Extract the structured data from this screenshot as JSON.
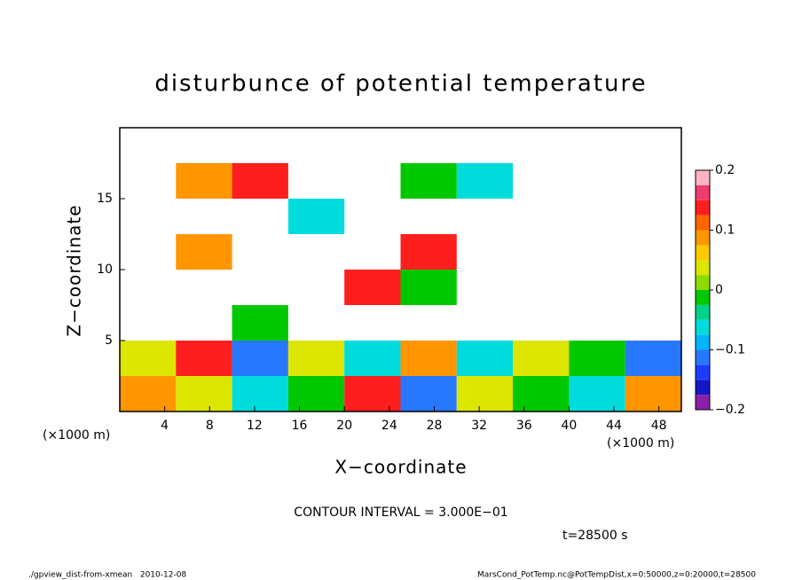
{
  "chart_data": {
    "type": "heatmap",
    "title": "disturbunce of potential temperature",
    "x_label": "X−coordinate",
    "y_label": "Z−coordinate",
    "x_unit_labels": [
      "(×1000 m)",
      "(×1000 m)"
    ],
    "contour_note": "CONTOUR INTERVAL = 3.000E−01",
    "time_label": "t=28500 s",
    "footer_left": "./gpview_dist-from-xmean   2010-12-08",
    "footer_right": "MarsCond_PotTemp.nc@PotTempDist,x=0:50000,z=0:20000,t=28500",
    "xlim": [
      0,
      50
    ],
    "ylim": [
      0,
      20
    ],
    "xticks": [
      4,
      8,
      12,
      16,
      20,
      24,
      28,
      32,
      36,
      40,
      44,
      48
    ],
    "yticks": [
      5,
      10,
      15
    ],
    "xbins": [
      0,
      5,
      10,
      15,
      20,
      25,
      30,
      35,
      40,
      45,
      50
    ],
    "ybins": [
      0,
      2.5,
      5,
      7.5,
      10,
      12.5,
      15,
      17.5,
      20
    ],
    "values": [
      [
        0.1,
        0.05,
        -0.05,
        0.0,
        0.15,
        -0.1,
        0.05,
        0.0,
        -0.05,
        0.1
      ],
      [
        0.05,
        0.15,
        -0.1,
        0.05,
        -0.05,
        0.1,
        -0.05,
        0.05,
        0.0,
        -0.1
      ],
      [
        null,
        null,
        0.0,
        null,
        null,
        null,
        null,
        null,
        null,
        null
      ],
      [
        null,
        null,
        null,
        null,
        0.15,
        0.0,
        null,
        null,
        null,
        null
      ],
      [
        null,
        0.1,
        null,
        null,
        null,
        0.15,
        null,
        null,
        null,
        null
      ],
      [
        null,
        null,
        null,
        -0.05,
        null,
        null,
        null,
        null,
        null,
        null
      ],
      [
        null,
        0.1,
        0.15,
        null,
        null,
        0.0,
        -0.05,
        null,
        null,
        null
      ],
      [
        null,
        null,
        null,
        null,
        null,
        null,
        null,
        null,
        null,
        null
      ]
    ],
    "levels": [
      -0.2,
      -0.175,
      -0.15,
      -0.125,
      -0.1,
      -0.075,
      -0.05,
      -0.025,
      0,
      0.025,
      0.05,
      0.075,
      0.1,
      0.125,
      0.15,
      0.175,
      0.2
    ],
    "colors": [
      "#8a1fa8",
      "#1414c8",
      "#1e3cff",
      "#2878ff",
      "#00b4ff",
      "#00dcdc",
      "#00d28c",
      "#00c800",
      "#8cdc00",
      "#dce600",
      "#ffc800",
      "#ff9600",
      "#ff6400",
      "#ff1e1e",
      "#f03c6e",
      "#ffb4c3"
    ],
    "cticks": [
      0.2,
      0.1,
      0,
      {
        "value": -0.1,
        "label": "−0.1"
      },
      {
        "value": -0.2,
        "label": "−0.2"
      }
    ]
  }
}
